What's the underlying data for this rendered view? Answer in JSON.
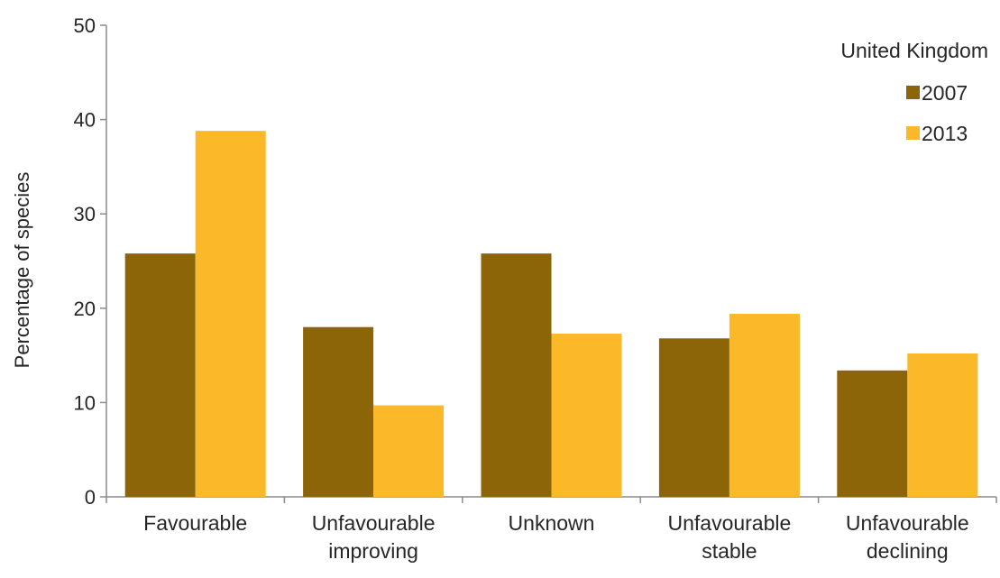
{
  "chart_data": {
    "type": "bar",
    "title": "United Kingdom",
    "xlabel": "",
    "ylabel": "Percentage of species",
    "ylim": [
      0,
      50
    ],
    "yticks": [
      0,
      10,
      20,
      30,
      40,
      50
    ],
    "grid": false,
    "legend_position": "top-right",
    "categories": [
      [
        "Favourable"
      ],
      [
        "Unfavourable",
        "improving"
      ],
      [
        "Unknown"
      ],
      [
        "Unfavourable",
        "stable"
      ],
      [
        "Unfavourable",
        "declining"
      ]
    ],
    "series": [
      {
        "name": "2007",
        "color": "#8B6508",
        "values": [
          25.8,
          18.0,
          25.8,
          16.8,
          13.4
        ]
      },
      {
        "name": "2013",
        "color": "#FBB829",
        "values": [
          38.8,
          9.7,
          17.3,
          19.4,
          15.2
        ]
      }
    ]
  }
}
